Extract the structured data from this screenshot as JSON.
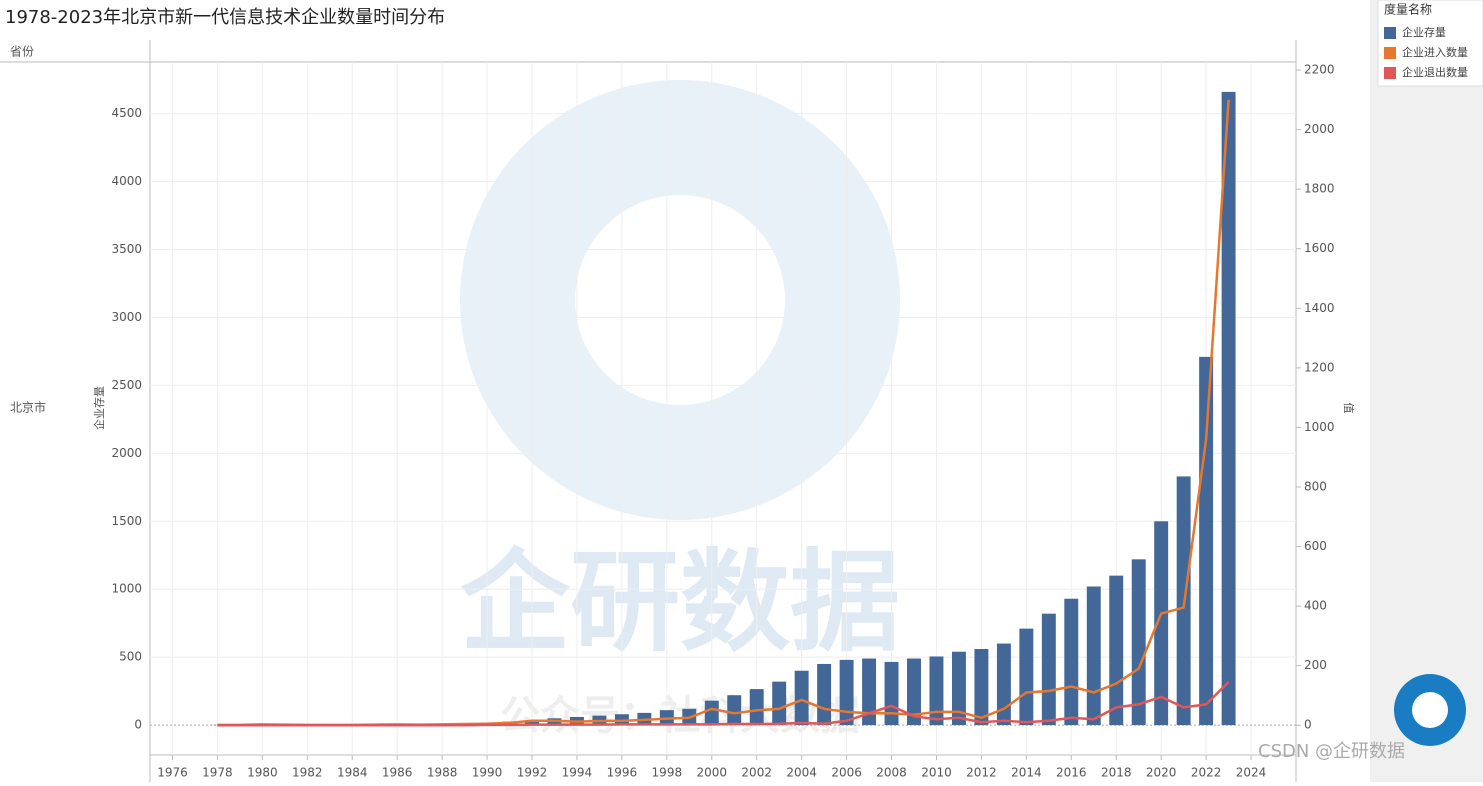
{
  "chart_data": {
    "type": "combo",
    "title": "1978-2023年北京市新一代信息技术企业数量时间分布",
    "row_header": "省份",
    "row_label": "北京市",
    "y_label": "企业存量",
    "y2_label": "值",
    "legend_title": "度量名称",
    "legend_position": "top-right",
    "grid": true,
    "watermarks": [
      "企研数据",
      "公众号：社科大数据",
      "CSDN @企研数据"
    ],
    "x": [
      1978,
      1979,
      1980,
      1981,
      1982,
      1983,
      1984,
      1985,
      1986,
      1987,
      1988,
      1989,
      1990,
      1991,
      1992,
      1993,
      1994,
      1995,
      1996,
      1997,
      1998,
      1999,
      2000,
      2001,
      2002,
      2003,
      2004,
      2005,
      2006,
      2007,
      2008,
      2009,
      2010,
      2011,
      2012,
      2013,
      2014,
      2015,
      2016,
      2017,
      2018,
      2019,
      2020,
      2021,
      2022,
      2023
    ],
    "xlim": [
      1975,
      2026
    ],
    "xticks": [
      1976,
      1978,
      1980,
      1982,
      1984,
      1986,
      1988,
      1990,
      1992,
      1994,
      1996,
      1998,
      2000,
      2002,
      2004,
      2006,
      2008,
      2010,
      2012,
      2014,
      2016,
      2018,
      2020,
      2022,
      2024
    ],
    "ylim": [
      -220,
      4880
    ],
    "yticks": [
      0,
      500,
      1000,
      1500,
      2000,
      2500,
      3000,
      3500,
      4000,
      4500
    ],
    "y2lim": [
      -100,
      2227
    ],
    "y2ticks": [
      0,
      200,
      400,
      600,
      800,
      1000,
      1200,
      1400,
      1600,
      1800,
      2000,
      2200
    ],
    "series": [
      {
        "name": "企业存量",
        "type": "bar",
        "color": "#436796",
        "values": [
          2,
          3,
          4,
          4,
          5,
          5,
          6,
          6,
          8,
          10,
          12,
          14,
          18,
          25,
          35,
          50,
          60,
          70,
          80,
          90,
          110,
          120,
          180,
          220,
          265,
          320,
          400,
          450,
          480,
          490,
          465,
          490,
          505,
          540,
          560,
          600,
          710,
          820,
          930,
          1020,
          1100,
          1220,
          1500,
          1830,
          2710,
          4660
        ]
      },
      {
        "name": "企业进入数量",
        "type": "line",
        "axis": "y2",
        "color": "#e6772e",
        "values": [
          1,
          1,
          3,
          2,
          1,
          1,
          1,
          2,
          3,
          2,
          3,
          4,
          5,
          8,
          15,
          15,
          12,
          14,
          15,
          18,
          22,
          25,
          55,
          40,
          50,
          55,
          85,
          55,
          45,
          40,
          40,
          35,
          45,
          45,
          25,
          55,
          110,
          115,
          130,
          110,
          140,
          190,
          375,
          395,
          960,
          2100
        ]
      },
      {
        "name": "企业退出数量",
        "type": "line",
        "axis": "y2",
        "color": "#e15759",
        "values": [
          0,
          0,
          0,
          0,
          0,
          0,
          0,
          0,
          0,
          0,
          0,
          0,
          1,
          1,
          2,
          2,
          2,
          2,
          3,
          3,
          3,
          3,
          3,
          4,
          4,
          5,
          8,
          5,
          15,
          40,
          65,
          30,
          20,
          25,
          10,
          15,
          10,
          15,
          25,
          20,
          60,
          70,
          95,
          60,
          70,
          145
        ]
      }
    ]
  }
}
